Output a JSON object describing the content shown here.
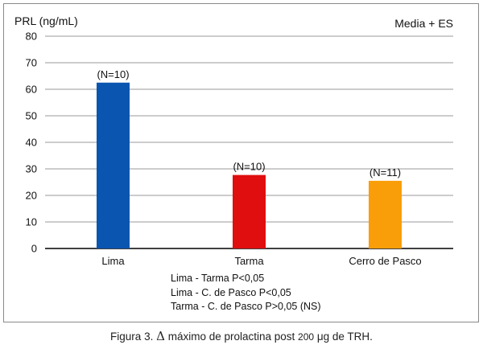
{
  "chart_data": {
    "type": "bar",
    "categories": [
      "Lima",
      "Tarma",
      "Cerro de Pasco"
    ],
    "values": [
      62.5,
      27.7,
      25.5
    ],
    "bar_labels": [
      "(N=10)",
      "(N=10)",
      "(N=11)"
    ],
    "colors": [
      "#0a55b0",
      "#e00e0e",
      "#f99d08"
    ],
    "ylabel": "PRL (ng/mL)",
    "legend": "Media + ES",
    "ylim": [
      0,
      80
    ],
    "yticks": [
      0,
      10,
      20,
      30,
      40,
      50,
      60,
      70,
      80
    ],
    "grid": true,
    "annotations": [
      "Lima - Tarma P<0,05",
      "Lima - C. de Pasco P<0,05",
      "Tarma - C. de Pasco P>0,05 (NS)"
    ]
  },
  "caption": {
    "prefix": "Figura 3.",
    "delta": "Δ",
    "mid": "máximo de prolactina post",
    "dose": "200",
    "unit": "μg",
    "suffix": "de TRH."
  }
}
